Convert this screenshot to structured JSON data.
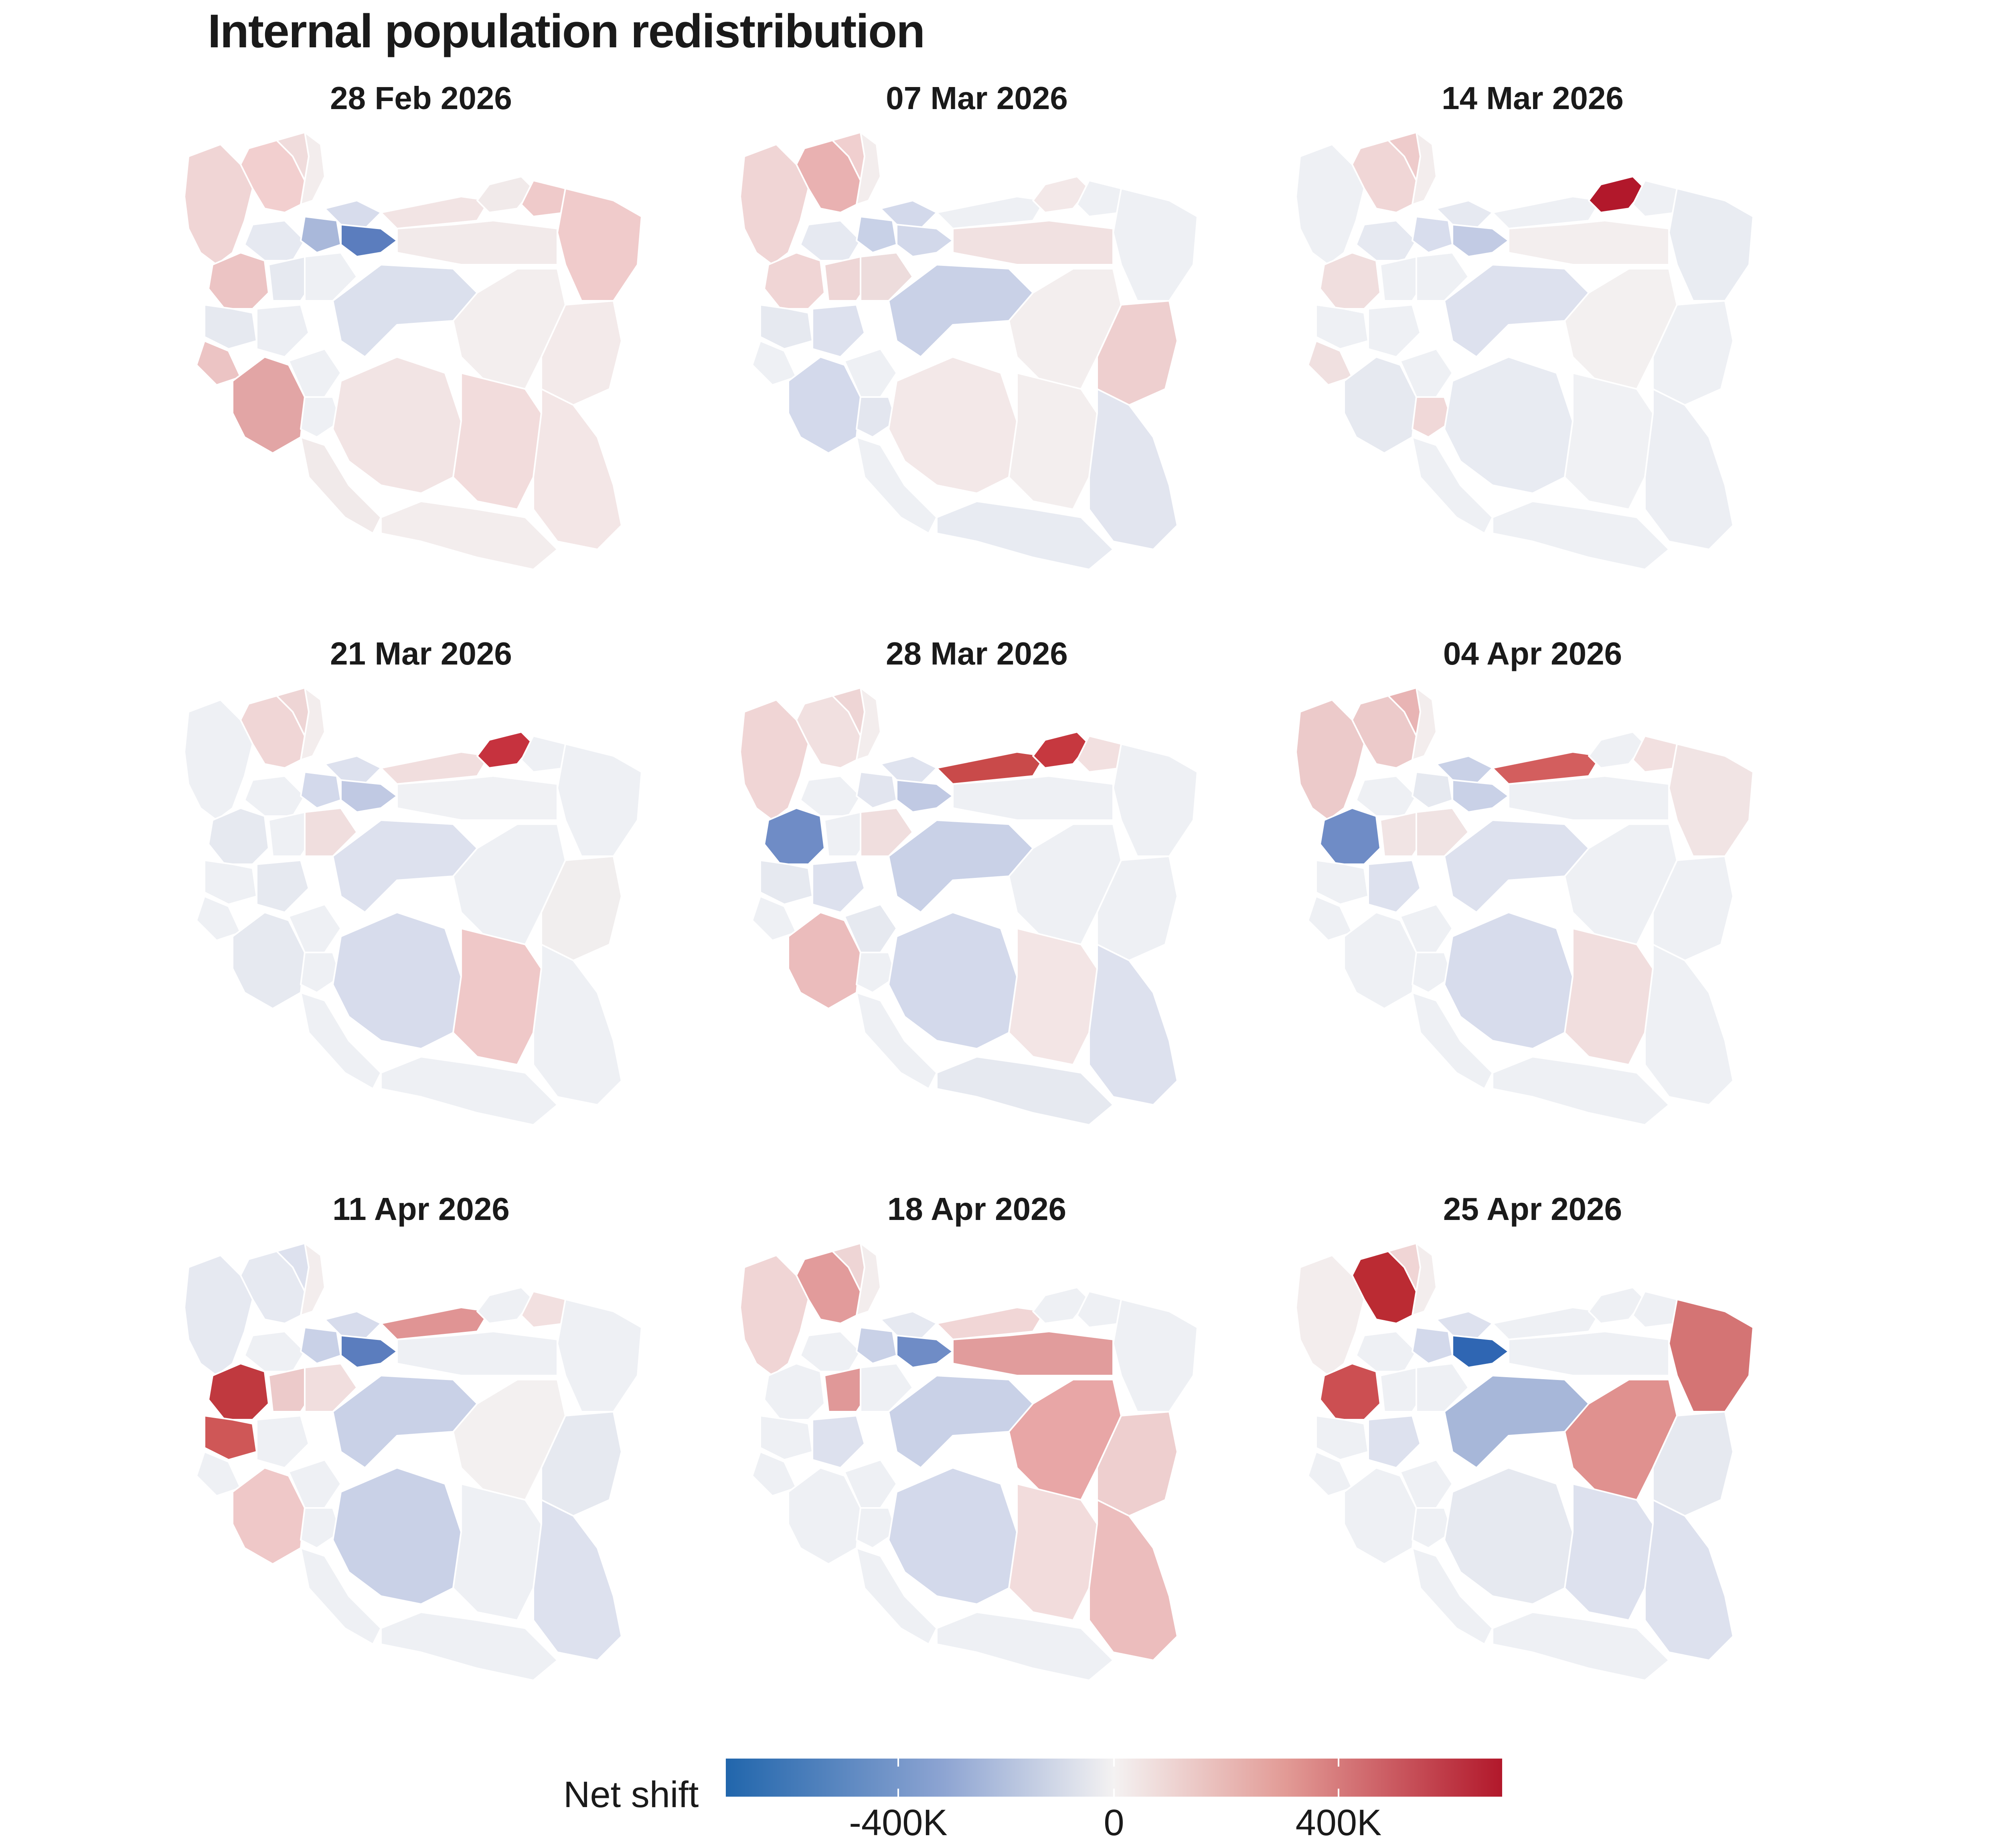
{
  "title": "Internal population redistribution",
  "legend": {
    "label": "Net shift",
    "ticks": [
      "-400K",
      "0",
      "400K"
    ],
    "scale": {
      "min_color": "#2166ac",
      "mid_color": "#f4f2f2",
      "max_color": "#b2182b"
    }
  },
  "panels": [
    {
      "date": "28 Feb 2026",
      "regions": {
        "tabriz_ne": "#f2cfcf",
        "east_az": "#f0dcdc",
        "ardabil": "#f3eded",
        "gilan": "#d7dcec",
        "mazandaran": "#f2e4e4",
        "golestan": "#f1eaea",
        "tehran": "#5b7dbe",
        "qazvin": "#a9b8da",
        "zanjan": "#e6e9f1",
        "kurdistan": "#ecc4c4",
        "hamadan": "#e6e9f0",
        "markazi": "#eef0f4",
        "semnan": "#f2eaea",
        "khorasan_n": "#efcaca",
        "khorasan_r": "#f0cbcb",
        "isfahan": "#dbe0ed",
        "yazd": "#f3eeee",
        "khuzestan": "#e2a5a5",
        "lorestan": "#eceef3",
        "fars": "#f2e4e4",
        "kerman": "#f2dcdc",
        "sistan": "#f3e6e6",
        "hormozgan": "#f3eded",
        "bushehr": "#f1eaea",
        "kohgiluyeh": "#eef0f4",
        "chahar": "#eef0f4",
        "ilam": "#ecc4c4",
        "kermanshah": "#e6e9f0",
        "south_khorasan": "#f3eaea",
        "west_az": "#f0d5d5"
      }
    },
    {
      "date": "07 Mar 2026",
      "regions": {
        "tabriz_ne": "#e9b1b1",
        "east_az": "#f0cfcf",
        "ardabil": "#f3eded",
        "gilan": "#d3d9eb",
        "mazandaran": "#eef0f4",
        "golestan": "#f3e8e8",
        "tehran": "#d2d8ea",
        "qazvin": "#c8d1e7",
        "zanjan": "#e6e9f1",
        "kurdistan": "#f0d5d5",
        "hamadan": "#eed6d6",
        "markazi": "#eddcdc",
        "semnan": "#f1e1e1",
        "khorasan_n": "#eef0f4",
        "khorasan_r": "#eef0f4",
        "isfahan": "#c9d1e7",
        "yazd": "#f3eeee",
        "khuzestan": "#d3d9eb",
        "lorestan": "#dde1ee",
        "fars": "#f3e8e8",
        "kerman": "#f3eeee",
        "sistan": "#e2e5ef",
        "hormozgan": "#e8ebf2",
        "bushehr": "#eef0f4",
        "kohgiluyeh": "#e3e6ef",
        "chahar": "#eef0f4",
        "ilam": "#eef0f4",
        "kermanshah": "#e6e9f0",
        "south_khorasan": "#eecfcf",
        "west_az": "#f0d5d5"
      }
    },
    {
      "date": "14 Mar 2026",
      "regions": {
        "tabriz_ne": "#f0d6d6",
        "east_az": "#eecbcb",
        "ardabil": "#f3eded",
        "gilan": "#e6e9f1",
        "mazandaran": "#eef0f4",
        "golestan": "#b2182b",
        "tehran": "#c2cbe4",
        "qazvin": "#d8dded",
        "zanjan": "#e6e9f1",
        "kurdistan": "#f0dede",
        "hamadan": "#eef0f4",
        "markazi": "#eef0f4",
        "semnan": "#f3eeee",
        "khorasan_n": "#eef0f4",
        "khorasan_r": "#e9ecf2",
        "isfahan": "#dde1ee",
        "yazd": "#f3f0f0",
        "khuzestan": "#e6e9f0",
        "lorestan": "#eef0f4",
        "fars": "#e8ebf2",
        "kerman": "#f0f1f4",
        "sistan": "#eceef3",
        "hormozgan": "#eef0f4",
        "bushehr": "#eef0f4",
        "kohgiluyeh": "#f0d8d8",
        "chahar": "#eef0f4",
        "ilam": "#f0e0e0",
        "kermanshah": "#eef0f4",
        "south_khorasan": "#eef0f4",
        "west_az": "#eef0f4"
      }
    },
    {
      "date": "21 Mar 2026",
      "regions": {
        "tabriz_ne": "#f0d6d6",
        "east_az": "#eed5d5",
        "ardabil": "#f3eded",
        "gilan": "#dde1ee",
        "mazandaran": "#f1dede",
        "golestan": "#c6323e",
        "tehran": "#c0c9e3",
        "qazvin": "#d3d9eb",
        "zanjan": "#eef0f4",
        "kurdistan": "#e6e9f0",
        "hamadan": "#eef0f4",
        "markazi": "#f0dede",
        "semnan": "#f0f1f4",
        "khorasan_n": "#eef0f4",
        "khorasan_r": "#eef0f4",
        "isfahan": "#dde1ee",
        "yazd": "#eef0f4",
        "khuzestan": "#e6e9f0",
        "lorestan": "#e6e9f0",
        "fars": "#d7dcec",
        "kerman": "#efc8c8",
        "sistan": "#eef0f4",
        "hormozgan": "#eef0f4",
        "bushehr": "#eef0f4",
        "kohgiluyeh": "#eef0f4",
        "chahar": "#eef0f4",
        "ilam": "#eef0f4",
        "kermanshah": "#eef0f4",
        "south_khorasan": "#f1eeee",
        "west_az": "#eef0f4"
      }
    },
    {
      "date": "28 Mar 2026",
      "regions": {
        "tabriz_ne": "#f1e0e0",
        "east_az": "#eed5d5",
        "ardabil": "#f3eded",
        "gilan": "#dfe3ef",
        "mazandaran": "#c94a4a",
        "golestan": "#c6383f",
        "tehran": "#c0c9e3",
        "qazvin": "#e2e5ef",
        "zanjan": "#eef0f4",
        "kurdistan": "#6f8cc6",
        "hamadan": "#eef0f4",
        "markazi": "#f0dede",
        "semnan": "#eef0f4",
        "khorasan_n": "#f2e0e0",
        "khorasan_r": "#eef0f4",
        "isfahan": "#c9d1e7",
        "yazd": "#eef0f4",
        "khuzestan": "#ebbcbc",
        "lorestan": "#dde1ee",
        "fars": "#d3d9eb",
        "kerman": "#f3e5e5",
        "sistan": "#dde1ee",
        "hormozgan": "#e6e9f0",
        "bushehr": "#eef0f4",
        "kohgiluyeh": "#eef0f4",
        "chahar": "#e6e9f0",
        "ilam": "#eef0f4",
        "kermanshah": "#e6e9f0",
        "south_khorasan": "#eef0f4",
        "west_az": "#f0d5d5"
      }
    },
    {
      "date": "04 Apr 2026",
      "regions": {
        "tabriz_ne": "#eccaca",
        "east_az": "#e8b4b4",
        "ardabil": "#f3eded",
        "gilan": "#c9d1e7",
        "mazandaran": "#d35e5e",
        "golestan": "#eef0f4",
        "tehran": "#c9d1e7",
        "qazvin": "#e6e9f0",
        "zanjan": "#eef0f4",
        "kurdistan": "#6f8cc6",
        "hamadan": "#f1e4e4",
        "markazi": "#f0e3e3",
        "semnan": "#eef0f4",
        "khorasan_n": "#f2e0e0",
        "khorasan_r": "#f1e4e4",
        "isfahan": "#dde1ee",
        "yazd": "#eef0f4",
        "khuzestan": "#eef0f4",
        "lorestan": "#dde1ee",
        "fars": "#d7dcec",
        "kerman": "#f1dede",
        "sistan": "#eef0f4",
        "hormozgan": "#eef0f4",
        "bushehr": "#eef0f4",
        "kohgiluyeh": "#eef0f4",
        "chahar": "#eef0f4",
        "ilam": "#eef0f4",
        "kermanshah": "#eef0f4",
        "south_khorasan": "#eef0f4",
        "west_az": "#eccaca"
      }
    },
    {
      "date": "11 Apr 2026",
      "regions": {
        "tabriz_ne": "#e6e9f1",
        "east_az": "#dde1ee",
        "ardabil": "#f3eded",
        "gilan": "#d7dcec",
        "mazandaran": "#e09494",
        "golestan": "#eef0f4",
        "tehran": "#5b7dbe",
        "qazvin": "#c9d1e7",
        "zanjan": "#eef0f4",
        "kurdistan": "#c0393f",
        "hamadan": "#eccaca",
        "markazi": "#f1dede",
        "semnan": "#eef0f4",
        "khorasan_n": "#f2e0e0",
        "khorasan_r": "#eef0f4",
        "isfahan": "#c9d1e7",
        "yazd": "#f3f0f0",
        "khuzestan": "#efc8c8",
        "lorestan": "#eef0f4",
        "fars": "#c9d1e7",
        "kerman": "#eef0f4",
        "sistan": "#dde1ee",
        "hormozgan": "#eef0f4",
        "bushehr": "#eef0f4",
        "kohgiluyeh": "#eef0f4",
        "chahar": "#eef0f4",
        "ilam": "#eef0f4",
        "kermanshah": "#cf5757",
        "south_khorasan": "#e6e9f0",
        "west_az": "#e6e9f1"
      }
    },
    {
      "date": "18 Apr 2026",
      "regions": {
        "tabriz_ne": "#e29b9b",
        "east_az": "#eed5d5",
        "ardabil": "#f3eded",
        "gilan": "#e6e9f1",
        "mazandaran": "#f1d6d6",
        "golestan": "#eef0f4",
        "tehran": "#6f8cc6",
        "qazvin": "#c9d1e7",
        "zanjan": "#eef0f4",
        "kurdistan": "#eef0f4",
        "hamadan": "#e09898",
        "markazi": "#eef0f4",
        "semnan": "#e19c9c",
        "khorasan_n": "#eef0f4",
        "khorasan_r": "#eef0f4",
        "isfahan": "#c9d1e7",
        "yazd": "#e8a6a6",
        "khuzestan": "#eef0f4",
        "lorestan": "#dde1ee",
        "fars": "#d3d9eb",
        "kerman": "#f2dcdc",
        "sistan": "#ecbdbd",
        "hormozgan": "#eef0f4",
        "bushehr": "#eef0f4",
        "kohgiluyeh": "#eef0f4",
        "chahar": "#eef0f4",
        "ilam": "#eef0f4",
        "kermanshah": "#eef0f4",
        "south_khorasan": "#eecfcf",
        "west_az": "#f0d5d5"
      }
    },
    {
      "date": "25 Apr 2026",
      "regions": {
        "tabriz_ne": "#bb2b33",
        "east_az": "#f0d5d5",
        "ardabil": "#f3eded",
        "gilan": "#dde1ee",
        "mazandaran": "#eef0f4",
        "golestan": "#eef0f4",
        "tehran": "#2f66b3",
        "qazvin": "#d3d9eb",
        "zanjan": "#eef0f4",
        "kurdistan": "#cc4f52",
        "hamadan": "#eef0f4",
        "markazi": "#eef0f4",
        "semnan": "#eef0f4",
        "khorasan_n": "#eef0f4",
        "khorasan_r": "#d47474",
        "isfahan": "#a7b7d9",
        "yazd": "#e0918f",
        "khuzestan": "#eef0f4",
        "lorestan": "#dde1ee",
        "fars": "#e6e9f0",
        "kerman": "#dde1ee",
        "sistan": "#dde1ee",
        "hormozgan": "#eef0f4",
        "bushehr": "#eef0f4",
        "kohgiluyeh": "#eef0f4",
        "chahar": "#eef0f4",
        "ilam": "#eef0f4",
        "kermanshah": "#eef0f4",
        "south_khorasan": "#e6e9f0",
        "west_az": "#f3eded"
      }
    }
  ]
}
